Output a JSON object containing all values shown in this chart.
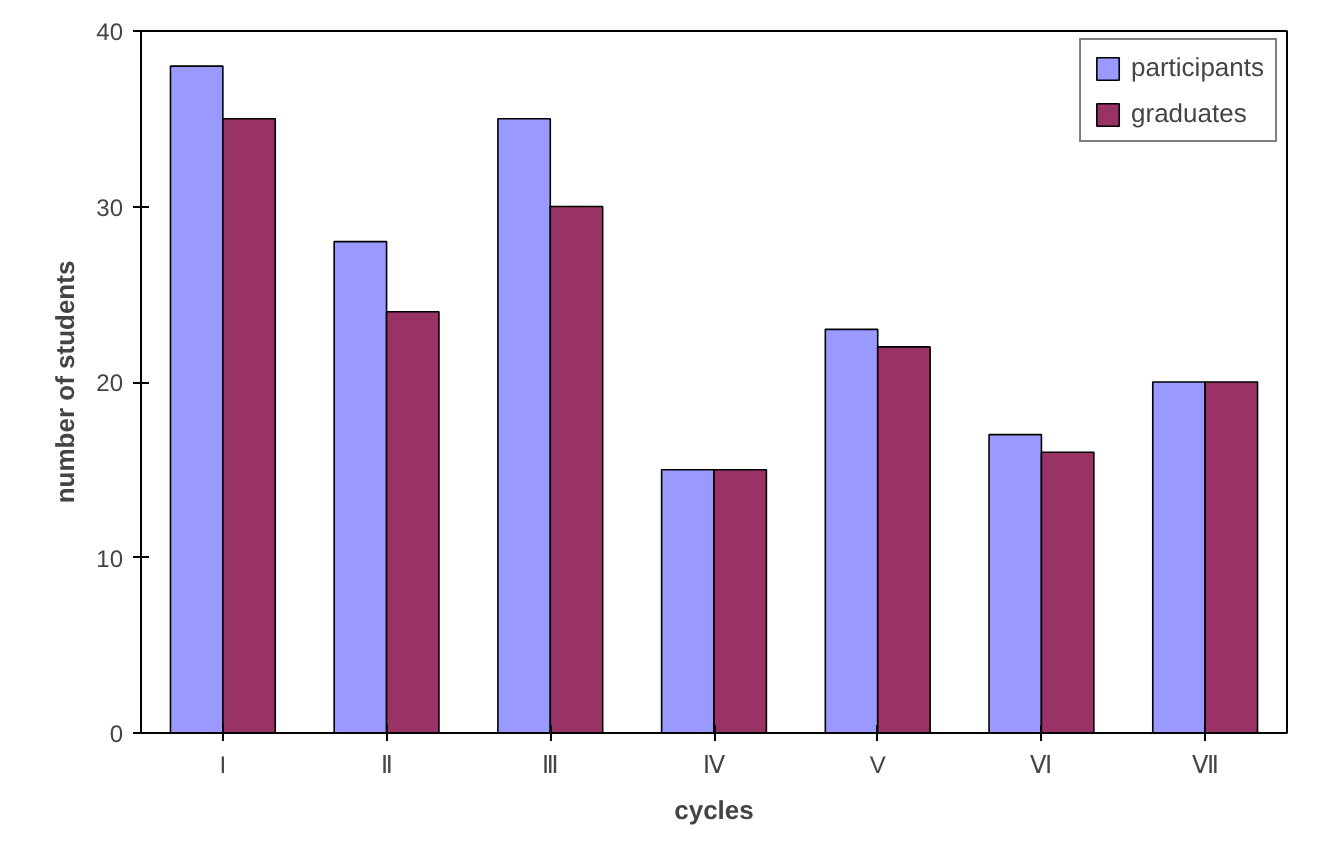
{
  "chart_data": {
    "type": "bar",
    "xlabel": "cycles",
    "ylabel": "number of students",
    "categories": [
      "I",
      "Ⅱ",
      "Ⅲ",
      "Ⅳ",
      "V",
      "Ⅵ",
      "Ⅶ"
    ],
    "series": [
      {
        "name": "participants",
        "color": "#9999ff",
        "values": [
          38,
          28,
          35,
          15,
          23,
          17,
          20
        ]
      },
      {
        "name": "graduates",
        "color": "#993366",
        "values": [
          35,
          24,
          30,
          15,
          22,
          16,
          20
        ]
      }
    ],
    "ylim": [
      0,
      40
    ],
    "yticks": [
      0,
      10,
      20,
      30,
      40
    ],
    "grid": false,
    "legend": "top right"
  }
}
